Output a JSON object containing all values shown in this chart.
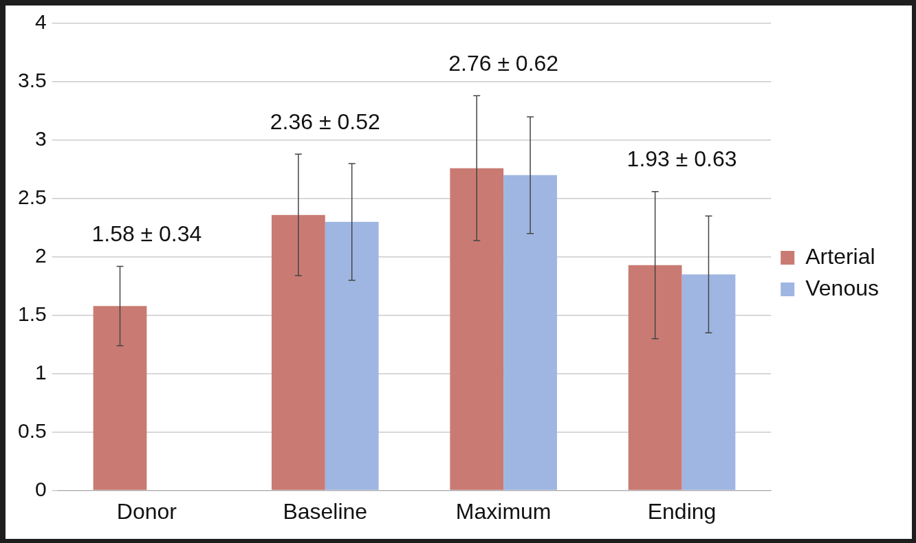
{
  "chart_data": {
    "type": "bar",
    "categories": [
      "Donor",
      "Baseline",
      "Maximum",
      "Ending"
    ],
    "series": [
      {
        "name": "Arterial",
        "color": "#c97b73",
        "values": [
          1.58,
          2.36,
          2.76,
          1.93
        ],
        "errors": [
          0.34,
          0.52,
          0.62,
          0.63
        ]
      },
      {
        "name": "Venous",
        "color": "#9fb6e2",
        "values": [
          null,
          2.3,
          2.7,
          1.85
        ],
        "errors": [
          null,
          0.5,
          0.5,
          0.5
        ]
      }
    ],
    "annotations": [
      "1.58 ± 0.34",
      "2.36 ± 0.52",
      "2.76 ± 0.62",
      "1.93 ± 0.63"
    ],
    "ylim": [
      0,
      4
    ],
    "yticks": [
      0,
      0.5,
      1,
      1.5,
      2,
      2.5,
      3,
      3.5,
      4
    ],
    "grid": "y",
    "legend": "right"
  }
}
